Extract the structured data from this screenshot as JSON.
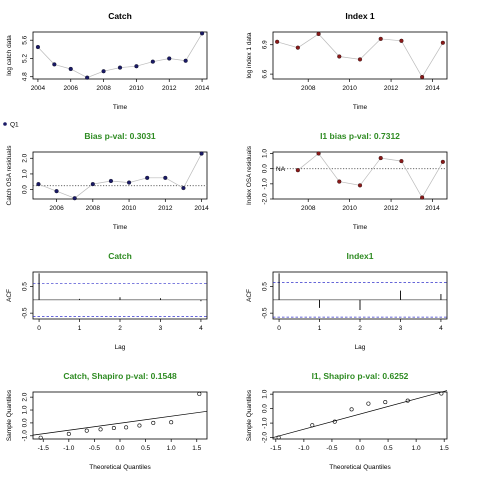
{
  "colors": {
    "title_black": "#000000",
    "title_green": "#2e8b22",
    "point_navy": "#1a1a66",
    "point_red": "#8b1a1a",
    "ref_blue": "#3333cc"
  },
  "legend": {
    "label": "Q1"
  },
  "chart_data": [
    {
      "id": "catch-ts",
      "type": "line",
      "title": "Catch",
      "title_color": "black",
      "xlabel": "Time",
      "ylabel": "log catch data",
      "x": [
        2004,
        2005,
        2006,
        2007,
        2008,
        2009,
        2010,
        2011,
        2012,
        2013,
        2014
      ],
      "y": [
        5.45,
        5.07,
        4.97,
        4.78,
        4.92,
        5.0,
        5.03,
        5.13,
        5.2,
        5.15,
        5.75
      ],
      "xlim": [
        2003.7,
        2014.3
      ],
      "ylim": [
        4.75,
        5.78
      ],
      "xticks": [
        2004,
        2006,
        2008,
        2010,
        2012,
        2014
      ],
      "yticks": [
        {
          "v": 4.8,
          "label": "4.8"
        },
        {
          "v": 5.2,
          "label": "5.2"
        },
        {
          "v": 5.6,
          "label": "5.6"
        }
      ],
      "point_color": "navy"
    },
    {
      "id": "index-ts",
      "type": "line",
      "title": "Index 1",
      "title_color": "black",
      "xlabel": "Time",
      "ylabel": "log index 1 data",
      "x": [
        2006.5,
        2007.5,
        2008.5,
        2009.5,
        2010.5,
        2011.5,
        2012.5,
        2013.5,
        2014.5
      ],
      "y": [
        6.93,
        6.87,
        7.01,
        6.78,
        6.75,
        6.96,
        6.94,
        6.57,
        6.92
      ],
      "xlim": [
        2006.3,
        2014.7
      ],
      "ylim": [
        6.55,
        7.03
      ],
      "xticks": [
        2008,
        2010,
        2012,
        2014
      ],
      "yticks": [
        {
          "v": 6.6,
          "label": "6.6"
        },
        {
          "v": 6.9,
          "label": "6.9"
        }
      ],
      "point_color": "red"
    },
    {
      "id": "catch-osa",
      "type": "line",
      "title": "Bias p-val: 0.3031",
      "title_color": "green",
      "xlabel": "Time",
      "ylabel": "Catch OSA residuals",
      "x": [
        2005,
        2006,
        2007,
        2008,
        2009,
        2010,
        2011,
        2012,
        2013,
        2014
      ],
      "y": [
        0.35,
        -0.1,
        -0.55,
        0.35,
        0.55,
        0.45,
        0.75,
        0.75,
        0.1,
        2.3
      ],
      "xlim": [
        2004.7,
        2014.3
      ],
      "ylim": [
        -0.6,
        2.4
      ],
      "xticks": [
        2006,
        2008,
        2010,
        2012,
        2014
      ],
      "yticks": [
        {
          "v": 0,
          "label": "0.0"
        },
        {
          "v": 1,
          "label": "1.0"
        },
        {
          "v": 2,
          "label": "2.0"
        }
      ],
      "refline": 0.25,
      "point_color": "navy"
    },
    {
      "id": "index-osa",
      "type": "line",
      "title": "I1 bias p-val: 0.7312",
      "title_color": "green",
      "xlabel": "Time",
      "ylabel": "Index OSA residuals",
      "x": [
        2007.5,
        2008.5,
        2009.5,
        2010.5,
        2011.5,
        2012.5,
        2013.5,
        2014.5
      ],
      "y": [
        -0.1,
        1.0,
        -0.85,
        -1.1,
        0.7,
        0.5,
        -1.9,
        0.45
      ],
      "xlim": [
        2006.3,
        2014.7
      ],
      "ylim": [
        -2.0,
        1.1
      ],
      "xticks": [
        2008,
        2010,
        2012,
        2014
      ],
      "yticks": [
        {
          "v": -2,
          "label": "-2.0"
        },
        {
          "v": -1,
          "label": "-1.0"
        },
        {
          "v": 0,
          "label": "0.0"
        },
        {
          "v": 1,
          "label": "1.0"
        }
      ],
      "refline": 0.0,
      "na_label": "NA",
      "point_color": "red"
    },
    {
      "id": "catch-acf",
      "type": "bar",
      "title": "Catch",
      "title_color": "green",
      "xlabel": "Lag",
      "ylabel": "ACF",
      "lags": [
        0,
        1,
        2,
        3,
        4
      ],
      "acf": [
        1.0,
        0.04,
        0.1,
        0.06,
        -0.05
      ],
      "xlim": [
        -0.15,
        4.15
      ],
      "ylim": [
        -0.72,
        1.05
      ],
      "xticks": [
        0,
        1,
        2,
        3,
        4
      ],
      "yticks": [
        {
          "v": -0.5,
          "label": "-0.5"
        },
        {
          "v": 0.5,
          "label": "0.5"
        }
      ],
      "ci": 0.62
    },
    {
      "id": "index-acf",
      "type": "bar",
      "title": "Index1",
      "title_color": "green",
      "xlabel": "Lag",
      "ylabel": "ACF",
      "lags": [
        0,
        1,
        2,
        3,
        4
      ],
      "acf": [
        1.0,
        -0.3,
        -0.38,
        0.35,
        0.22
      ],
      "xlim": [
        -0.15,
        4.15
      ],
      "ylim": [
        -0.72,
        1.05
      ],
      "xticks": [
        0,
        1,
        2,
        3,
        4
      ],
      "yticks": [
        {
          "v": -0.5,
          "label": "-0.5"
        },
        {
          "v": 0.5,
          "label": "0.5"
        }
      ],
      "ci": 0.65
    },
    {
      "id": "catch-qq",
      "type": "scatter",
      "title": "Catch, Shapiro p-val: 0.1548",
      "title_color": "green",
      "xlabel": "Theoretical Quantiles",
      "ylabel": "Sample Quantiles",
      "x": [
        -1.55,
        -1.0,
        -0.65,
        -0.38,
        -0.12,
        0.12,
        0.38,
        0.65,
        1.0,
        1.55
      ],
      "y": [
        -1.15,
        -0.85,
        -0.6,
        -0.5,
        -0.4,
        -0.35,
        -0.2,
        0.0,
        0.05,
        2.25
      ],
      "xlim": [
        -1.7,
        1.7
      ],
      "ylim": [
        -1.25,
        2.4
      ],
      "xticks": [
        {
          "v": -1.5,
          "label": "-1.5"
        },
        {
          "v": -1.0,
          "label": "-1.0"
        },
        {
          "v": -0.5,
          "label": "-0.5"
        },
        {
          "v": 0,
          "label": "0.0"
        },
        {
          "v": 0.5,
          "label": "0.5"
        },
        {
          "v": 1.0,
          "label": "1.0"
        },
        {
          "v": 1.5,
          "label": "1.5"
        }
      ],
      "yticks": [
        {
          "v": -1,
          "label": "-1.0"
        },
        {
          "v": 0,
          "label": "0.0"
        },
        {
          "v": 1,
          "label": "1.0"
        },
        {
          "v": 2,
          "label": "2.0"
        }
      ],
      "qqline": [
        [
          -1.7,
          -0.95
        ],
        [
          1.7,
          0.9
        ]
      ]
    },
    {
      "id": "index-qq",
      "type": "scatter",
      "title": "I1, Shapiro p-val: 0.6252",
      "title_color": "green",
      "xlabel": "Theoretical Quantiles",
      "ylabel": "Sample Quantiles",
      "x": [
        -1.45,
        -0.85,
        -0.45,
        -0.15,
        0.15,
        0.45,
        0.85,
        1.45
      ],
      "y": [
        -2.0,
        -1.15,
        -0.9,
        -0.05,
        0.35,
        0.45,
        0.55,
        1.05
      ],
      "xlim": [
        -1.55,
        1.55
      ],
      "ylim": [
        -2.1,
        1.15
      ],
      "xticks": [
        {
          "v": -1.5,
          "label": "-1.5"
        },
        {
          "v": -1.0,
          "label": "-1.0"
        },
        {
          "v": -0.5,
          "label": "-0.5"
        },
        {
          "v": 0,
          "label": "0.0"
        },
        {
          "v": 0.5,
          "label": "0.5"
        },
        {
          "v": 1.0,
          "label": "1.0"
        },
        {
          "v": 1.5,
          "label": "1.5"
        }
      ],
      "yticks": [
        {
          "v": -2,
          "label": "-2.0"
        },
        {
          "v": -1,
          "label": "-1.0"
        },
        {
          "v": 0,
          "label": "0.0"
        },
        {
          "v": 1,
          "label": "1.0"
        }
      ],
      "qqline": [
        [
          -1.55,
          -2.0
        ],
        [
          1.55,
          1.25
        ]
      ]
    }
  ]
}
